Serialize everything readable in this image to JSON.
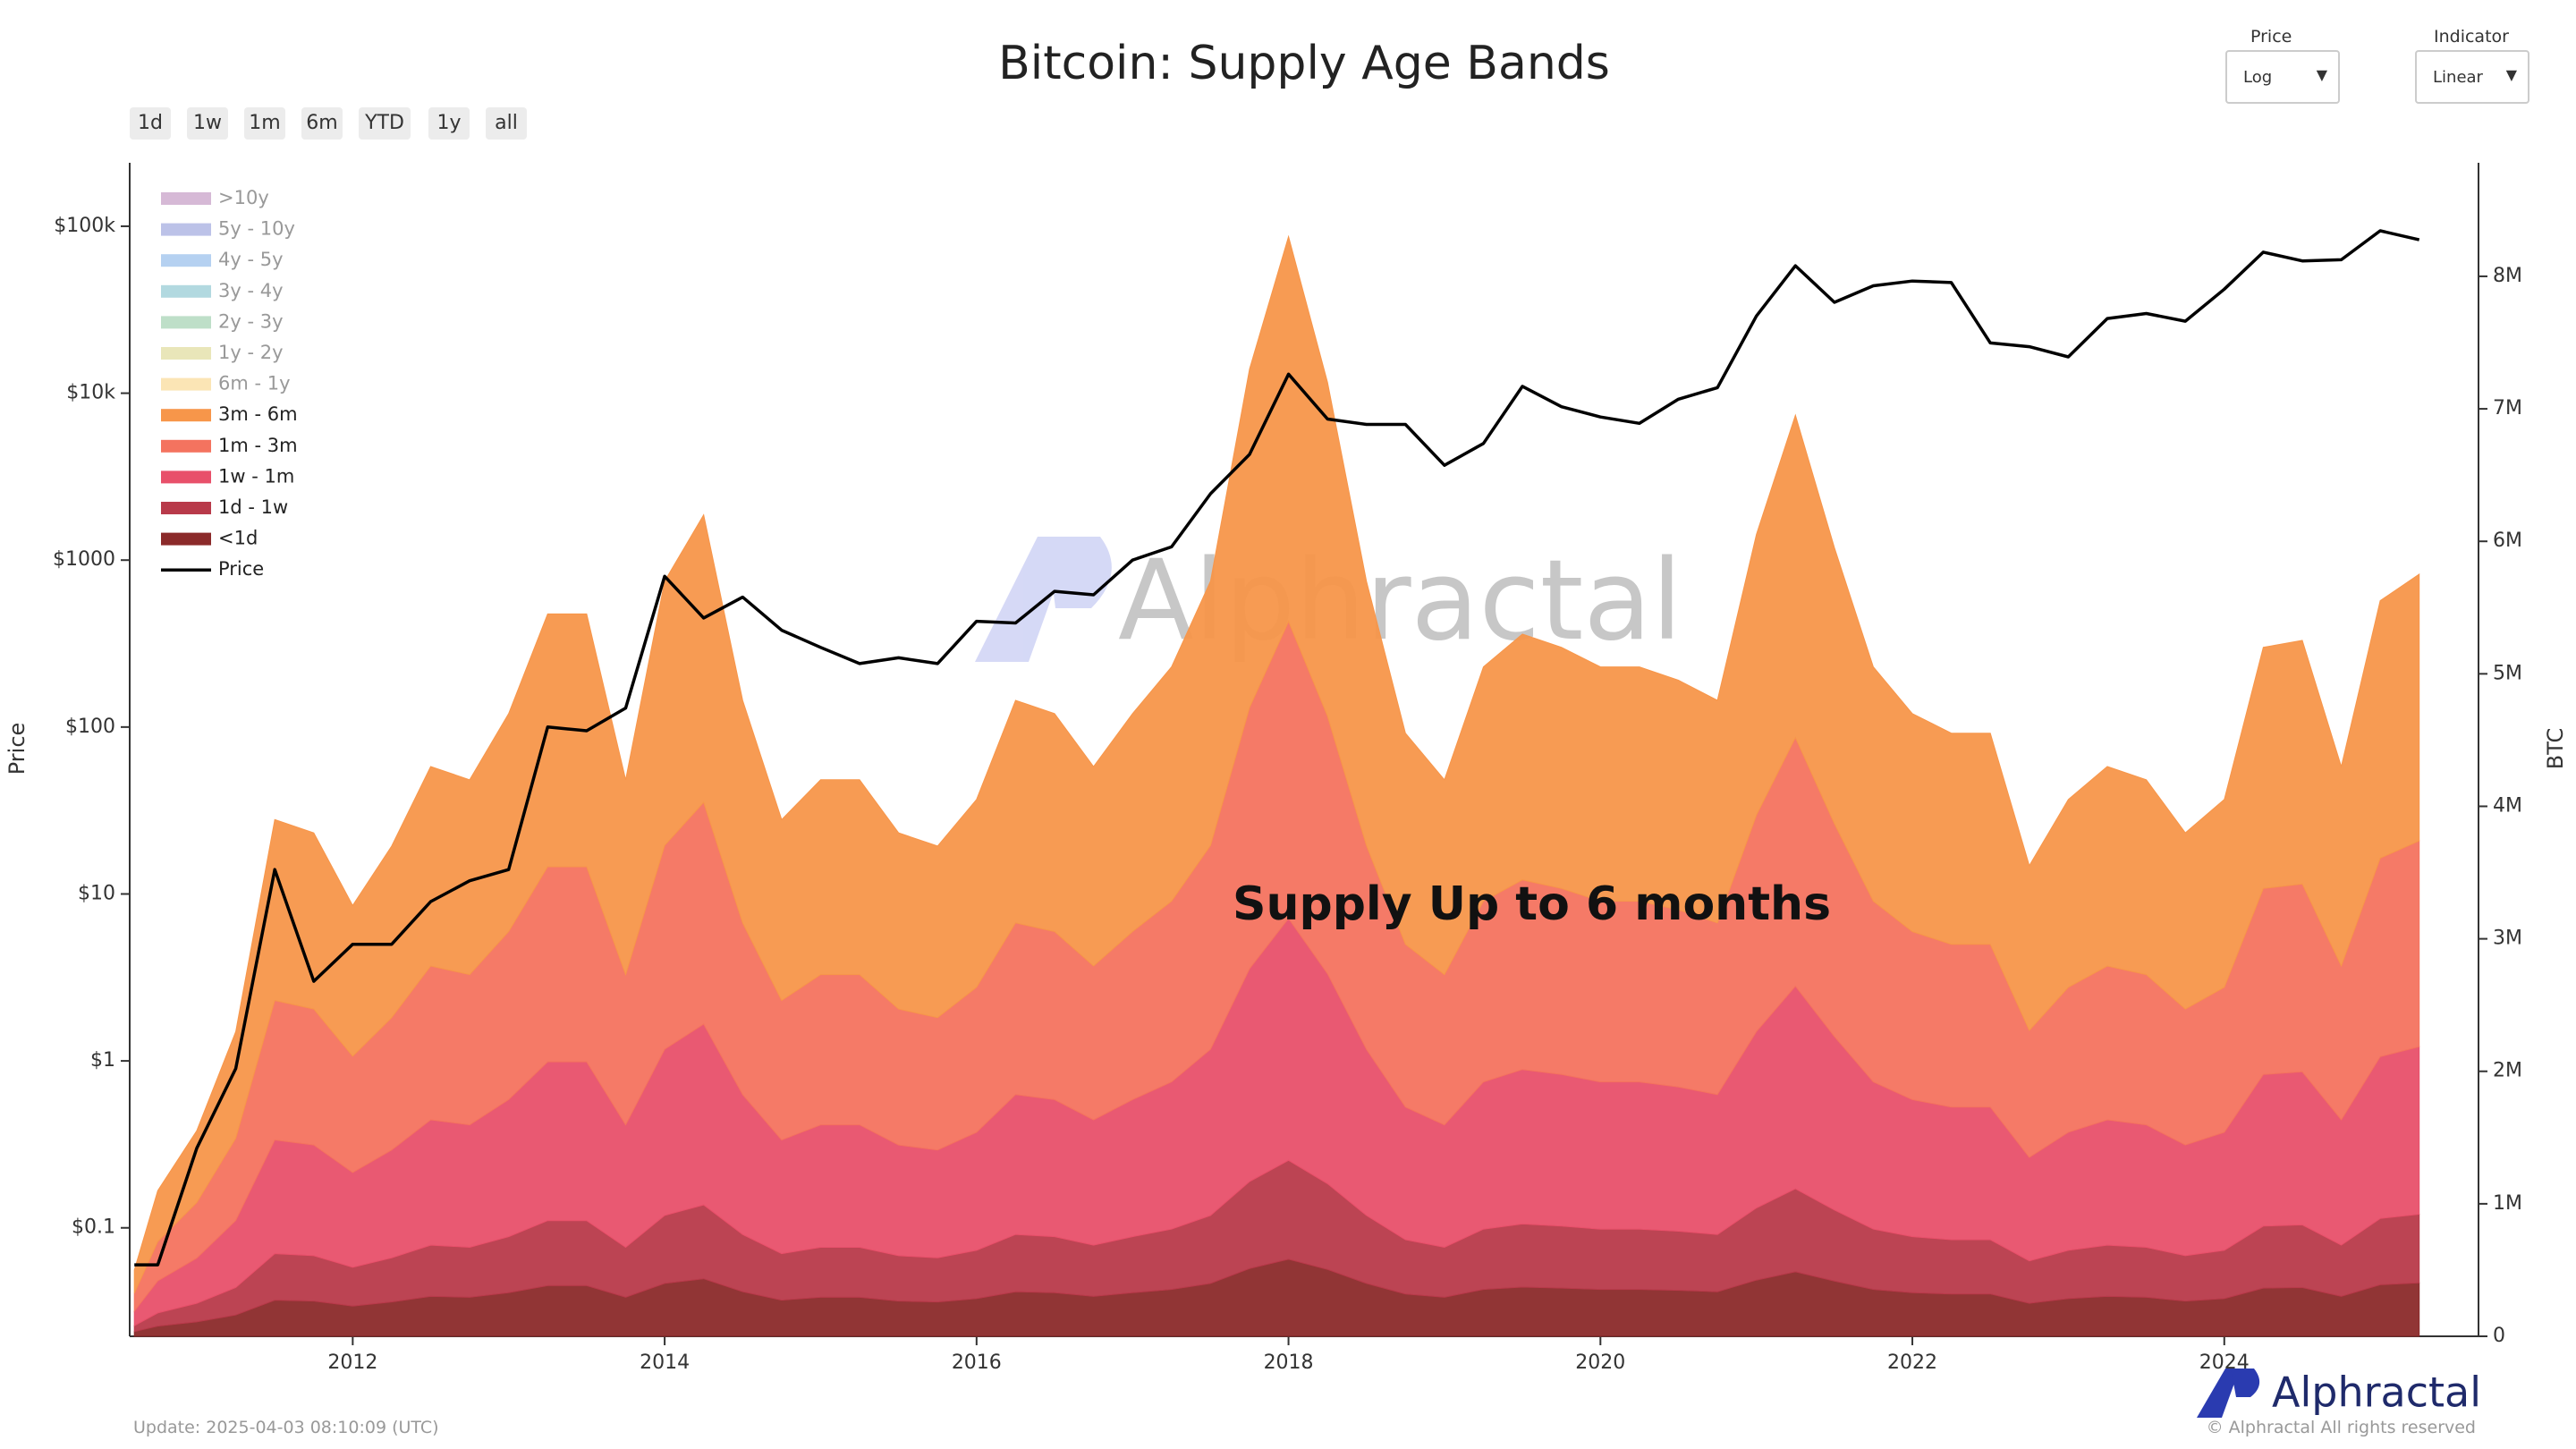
{
  "chart_data": {
    "type": "area",
    "title": "Bitcoin: Supply Age Bands",
    "ylabel": "Price",
    "y2label": "BTC",
    "annotation": "Supply Up to 6 months",
    "watermark": "Alphractal",
    "ylog": true,
    "grid": false,
    "legend": "upper left",
    "xlim": [
      2010.57,
      2025.63
    ],
    "xticks": [
      2012,
      2014,
      2016,
      2018,
      2020,
      2022,
      2024
    ],
    "ylim": [
      0.0224,
      240000
    ],
    "yticks": [
      {
        "value": 0.1,
        "label": "$0.1"
      },
      {
        "value": 1,
        "label": "$1"
      },
      {
        "value": 10,
        "label": "$10"
      },
      {
        "value": 100,
        "label": "$100"
      },
      {
        "value": 1000,
        "label": "$1000"
      },
      {
        "value": 10000,
        "label": "$10k"
      },
      {
        "value": 100000,
        "label": "$100k"
      }
    ],
    "y2lim": [
      0,
      8857000
    ],
    "y2ticks": [
      0,
      {
        "value": 1000000,
        "label": "1M"
      },
      {
        "value": 2000000,
        "label": "2M"
      },
      {
        "value": 3000000,
        "label": "3M"
      },
      {
        "value": 4000000,
        "label": "4M"
      },
      {
        "value": 5000000,
        "label": "5M"
      },
      {
        "value": 6000000,
        "label": "6M"
      },
      {
        "value": 7000000,
        "label": "7M"
      },
      {
        "value": 8000000,
        "label": "8M"
      }
    ],
    "x": [
      2010.6,
      2010.75,
      2011,
      2011.25,
      2011.5,
      2011.75,
      2012,
      2012.25,
      2012.5,
      2012.75,
      2013,
      2013.25,
      2013.5,
      2013.75,
      2014,
      2014.25,
      2014.5,
      2014.75,
      2015,
      2015.25,
      2015.5,
      2015.75,
      2016,
      2016.25,
      2016.5,
      2016.75,
      2017,
      2017.25,
      2017.5,
      2017.75,
      2018,
      2018.25,
      2018.5,
      2018.75,
      2019,
      2019.25,
      2019.5,
      2019.75,
      2020,
      2020.25,
      2020.5,
      2020.75,
      2021,
      2021.25,
      2021.5,
      2021.75,
      2022,
      2022.25,
      2022.5,
      2022.75,
      2023,
      2023.25,
      2023.5,
      2023.75,
      2024,
      2024.25,
      2024.5,
      2024.75,
      2025,
      2025.25
    ],
    "series": [
      {
        "name": ">10y",
        "color": "#c8a2c8",
        "hidden": true
      },
      {
        "name": "5y - 10y",
        "color": "#a6aee0",
        "hidden": true
      },
      {
        "name": "4y - 5y",
        "color": "#9cc2ec",
        "hidden": true
      },
      {
        "name": "3y - 4y",
        "color": "#98ccd6",
        "hidden": true
      },
      {
        "name": "2y - 3y",
        "color": "#a8d4b6",
        "hidden": true
      },
      {
        "name": "1y - 2y",
        "color": "#e2dea2",
        "hidden": true
      },
      {
        "name": "6m - 1y",
        "color": "#f9dc9c",
        "hidden": true
      },
      {
        "name": "3m - 6m",
        "color": "#f7964a",
        "axis": "y2",
        "values": [
          175000,
          385000,
          543000,
          805000,
          1365000,
          1330000,
          1138000,
          1295000,
          1505000,
          1470000,
          1645000,
          1908000,
          1908000,
          1470000,
          1995000,
          2170000,
          1680000,
          1365000,
          1470000,
          1470000,
          1330000,
          1295000,
          1418000,
          1680000,
          1645000,
          1505000,
          1645000,
          1768000,
          1995000,
          2555000,
          2905000,
          2520000,
          1995000,
          1593000,
          1470000,
          1768000,
          1855000,
          1820000,
          1768000,
          1768000,
          1733000,
          1680000,
          2118000,
          2433000,
          2083000,
          1768000,
          1645000,
          1593000,
          1593000,
          1243000,
          1418000,
          1505000,
          1470000,
          1330000,
          1418000,
          1820000,
          1838000,
          1505000,
          1943000,
          2013000
        ]
      },
      {
        "name": "1m - 3m",
        "color": "#f4735f",
        "axis": "y2",
        "values": [
          135000,
          297000,
          419000,
          621000,
          1053000,
          1026000,
          878000,
          999000,
          1161000,
          1134000,
          1269000,
          1472000,
          1472000,
          1134000,
          1539000,
          1674000,
          1296000,
          1053000,
          1134000,
          1134000,
          1026000,
          999000,
          1094000,
          1296000,
          1269000,
          1161000,
          1269000,
          1364000,
          1539000,
          1971000,
          2241000,
          1944000,
          1539000,
          1229000,
          1134000,
          1364000,
          1431000,
          1404000,
          1364000,
          1364000,
          1337000,
          1296000,
          1634000,
          1877000,
          1607000,
          1364000,
          1269000,
          1229000,
          1229000,
          959000,
          1094000,
          1161000,
          1134000,
          1026000,
          1094000,
          1404000,
          1418000,
          1161000,
          1499000,
          1553000
        ]
      },
      {
        "name": "1w - 1m",
        "color": "#e8506a",
        "axis": "y2",
        "values": [
          110000,
          242000,
          341000,
          506000,
          858000,
          836000,
          715000,
          814000,
          946000,
          924000,
          1034000,
          1199000,
          1199000,
          924000,
          1254000,
          1364000,
          1056000,
          858000,
          924000,
          924000,
          836000,
          814000,
          891000,
          1056000,
          1034000,
          946000,
          1034000,
          1111000,
          1254000,
          1606000,
          1826000,
          1584000,
          1254000,
          1001000,
          924000,
          1111000,
          1166000,
          1144000,
          1111000,
          1111000,
          1089000,
          1056000,
          1331000,
          1529000,
          1309000,
          1111000,
          1034000,
          1001000,
          1001000,
          781000,
          891000,
          946000,
          924000,
          836000,
          891000,
          1144000,
          1155000,
          946000,
          1221000,
          1265000
        ]
      },
      {
        "name": "1d - 1w",
        "color": "#b83a4a",
        "axis": "y2",
        "values": [
          45000,
          99000,
          140000,
          207000,
          351000,
          342000,
          293000,
          333000,
          387000,
          378000,
          423000,
          491000,
          491000,
          378000,
          513000,
          558000,
          432000,
          351000,
          378000,
          378000,
          342000,
          333000,
          365000,
          432000,
          423000,
          387000,
          423000,
          455000,
          513000,
          657000,
          747000,
          648000,
          513000,
          410000,
          378000,
          455000,
          477000,
          468000,
          455000,
          455000,
          446000,
          432000,
          545000,
          626000,
          536000,
          455000,
          423000,
          410000,
          410000,
          320000,
          365000,
          387000,
          378000,
          342000,
          365000,
          468000,
          473000,
          387000,
          500000,
          518000
        ]
      },
      {
        "name": "<1d",
        "color": "#8b2a2a",
        "axis": "y2",
        "values": [
          35000,
          77000,
          109000,
          161000,
          273000,
          266000,
          228000,
          259000,
          301000,
          294000,
          329000,
          382000,
          382000,
          294000,
          399000,
          434000,
          336000,
          273000,
          294000,
          294000,
          266000,
          259000,
          284000,
          336000,
          329000,
          301000,
          329000,
          354000,
          399000,
          511000,
          581000,
          504000,
          399000,
          319000,
          294000,
          354000,
          371000,
          364000,
          354000,
          354000,
          347000,
          336000,
          424000,
          487000,
          417000,
          354000,
          329000,
          319000,
          319000,
          249000,
          284000,
          301000,
          294000,
          266000,
          284000,
          364000,
          368000,
          301000,
          389000,
          403000
        ]
      },
      {
        "name": "Price",
        "type": "line",
        "color": "#000000",
        "axis": "y",
        "values": [
          0.06,
          0.06,
          0.3,
          0.9,
          14,
          3,
          5,
          5,
          9,
          12,
          14,
          100,
          95,
          130,
          800,
          450,
          600,
          380,
          300,
          240,
          260,
          240,
          430,
          420,
          650,
          620,
          1000,
          1200,
          2500,
          4300,
          13000,
          7000,
          6500,
          6500,
          3700,
          5000,
          11000,
          8300,
          7200,
          6600,
          9200,
          10800,
          29000,
          58000,
          35000,
          44000,
          47000,
          46000,
          20000,
          19000,
          16500,
          28000,
          30000,
          27000,
          42000,
          70000,
          62000,
          63000,
          94000,
          83000
        ]
      }
    ]
  },
  "controls": {
    "range_buttons": [
      "1d",
      "1w",
      "1m",
      "6m",
      "YTD",
      "1y",
      "all"
    ],
    "price_label": "Price",
    "price_value": "Log",
    "indicator_label": "Indicator",
    "indicator_value": "Linear"
  },
  "footer": {
    "update": "Update: 2025-04-03 08:10:09 (UTC)",
    "logo": "Alphractal",
    "copyright": "© Alphractal All rights reserved"
  }
}
